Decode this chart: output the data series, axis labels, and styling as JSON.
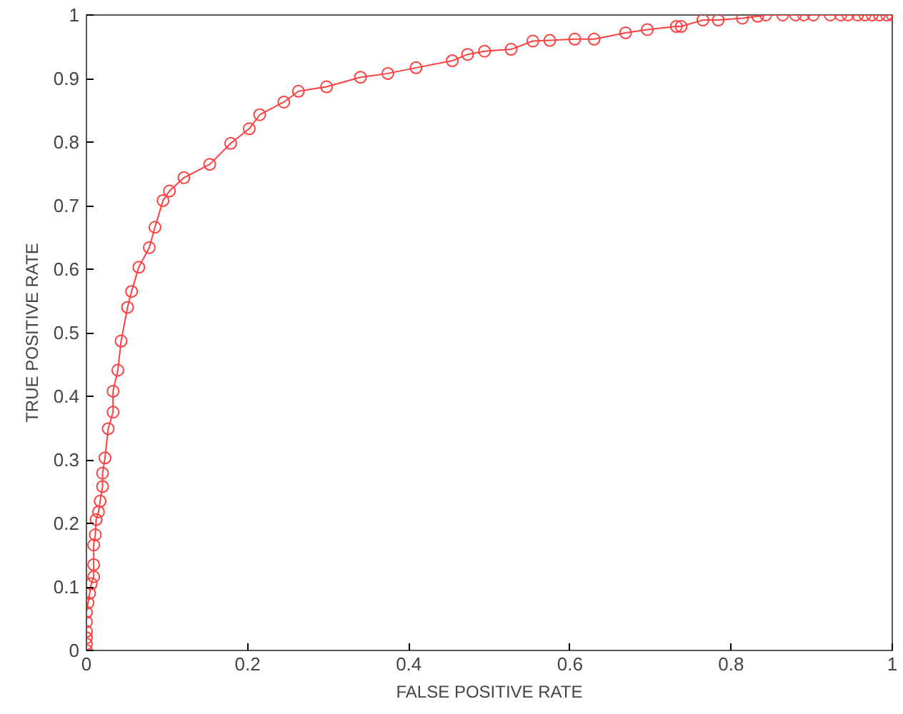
{
  "chart_data": {
    "type": "line",
    "xlabel": "FALSE POSITIVE RATE",
    "ylabel": "TRUE POSITIVE RATE",
    "marker": "circle",
    "line_style": "solid",
    "grid": false,
    "xlim": [
      0,
      1
    ],
    "ylim": [
      0,
      1
    ],
    "xticks": [
      0,
      0.2,
      0.4,
      0.6,
      0.8,
      1
    ],
    "yticks": [
      0,
      0.1,
      0.2,
      0.3,
      0.4,
      0.5,
      0.6,
      0.7,
      0.8,
      0.9,
      1
    ],
    "series": [
      {
        "color": "#ff4040",
        "x": [
          0,
          0,
          0,
          0,
          0,
          0,
          0.002,
          0.004,
          0.006,
          0.009,
          0.009,
          0.009,
          0.011,
          0.012,
          0.015,
          0.017,
          0.02,
          0.02,
          0.023,
          0.027,
          0.033,
          0.033,
          0.039,
          0.043,
          0.051,
          0.056,
          0.065,
          0.078,
          0.085,
          0.095,
          0.103,
          0.121,
          0.153,
          0.179,
          0.202,
          0.215,
          0.245,
          0.263,
          0.298,
          0.34,
          0.374,
          0.409,
          0.454,
          0.473,
          0.494,
          0.527,
          0.554,
          0.575,
          0.606,
          0.63,
          0.669,
          0.696,
          0.732,
          0.738,
          0.765,
          0.784,
          0.814,
          0.833,
          0.843,
          0.864,
          0.88,
          0.89,
          0.902,
          0.923,
          0.936,
          0.945,
          0.957,
          0.966,
          0.975,
          0.984,
          0.993,
          1.0
        ],
        "values": [
          0,
          0.01,
          0.02,
          0.03,
          0.045,
          0.06,
          0.075,
          0.09,
          0.105,
          0.116,
          0.135,
          0.166,
          0.182,
          0.206,
          0.218,
          0.235,
          0.258,
          0.279,
          0.303,
          0.349,
          0.375,
          0.408,
          0.441,
          0.487,
          0.54,
          0.565,
          0.603,
          0.634,
          0.666,
          0.708,
          0.723,
          0.744,
          0.765,
          0.798,
          0.821,
          0.843,
          0.863,
          0.88,
          0.887,
          0.902,
          0.908,
          0.917,
          0.928,
          0.938,
          0.943,
          0.946,
          0.959,
          0.96,
          0.962,
          0.962,
          0.972,
          0.977,
          0.982,
          0.982,
          0.992,
          0.992,
          0.995,
          0.998,
          1,
          1,
          1,
          1,
          1,
          1,
          1,
          1,
          1,
          1,
          1,
          1,
          1,
          1
        ]
      }
    ]
  }
}
